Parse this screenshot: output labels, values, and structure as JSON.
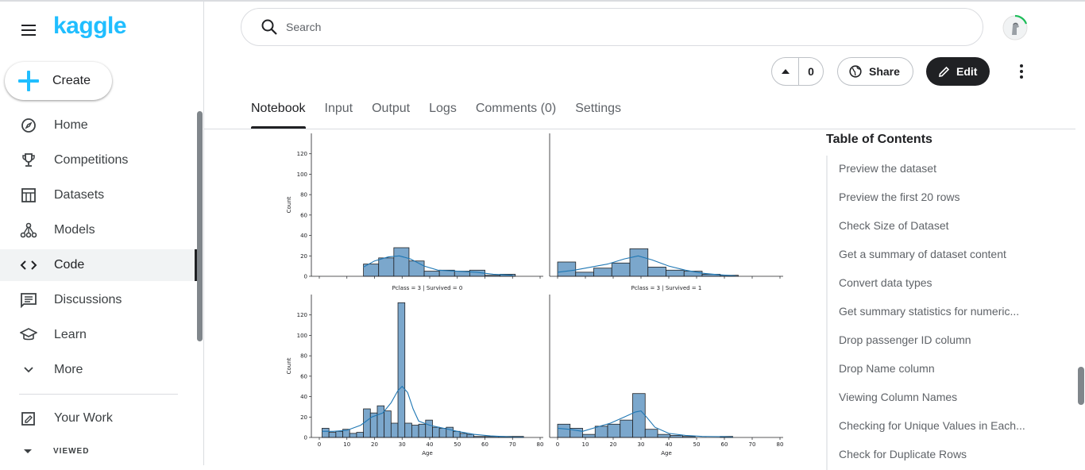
{
  "brand": {
    "logo_text": "kaggle",
    "accent": "#20beff"
  },
  "sidebar": {
    "create_label": "Create",
    "items": [
      {
        "label": "Home",
        "icon": "compass-icon"
      },
      {
        "label": "Competitions",
        "icon": "trophy-icon"
      },
      {
        "label": "Datasets",
        "icon": "table-icon"
      },
      {
        "label": "Models",
        "icon": "models-icon"
      },
      {
        "label": "Code",
        "icon": "code-icon",
        "active": true
      },
      {
        "label": "Discussions",
        "icon": "discussion-icon"
      },
      {
        "label": "Learn",
        "icon": "school-icon"
      },
      {
        "label": "More",
        "icon": "chevron-down-icon"
      }
    ],
    "your_work_label": "Your Work",
    "viewed_label": "VIEWED"
  },
  "header": {
    "search_placeholder": "Search",
    "vote_count": "0",
    "share_label": "Share",
    "edit_label": "Edit"
  },
  "tabs": [
    {
      "label": "Notebook",
      "active": true
    },
    {
      "label": "Input"
    },
    {
      "label": "Output"
    },
    {
      "label": "Logs"
    },
    {
      "label": "Comments (0)"
    },
    {
      "label": "Settings"
    }
  ],
  "toc": {
    "title": "Table of Contents",
    "items": [
      "Preview the dataset",
      "Preview the first 20 rows",
      "Check Size of Dataset",
      "Get a summary of dataset content",
      "Convert data types",
      "Get summary statistics for numeric...",
      "Drop passenger ID column",
      "Drop Name column",
      "Viewing Column Names",
      "Checking for Unique Values in Each...",
      "Check for Duplicate Rows"
    ]
  },
  "chart_data": {
    "type": "bar",
    "bar_color": "#7ba7cc",
    "kde_color": "#1f77b4",
    "ylabel": "Count",
    "xlabel": "Age",
    "xlim": [
      0,
      80
    ],
    "ylim": [
      0,
      140
    ],
    "xticks": [
      0,
      10,
      20,
      30,
      40,
      50,
      60,
      70,
      80
    ],
    "yticks": [
      0,
      20,
      40,
      60,
      80,
      100,
      120
    ],
    "panels": [
      {
        "title": "",
        "bins": [
          {
            "x0": 16,
            "x1": 21.5,
            "count": 12
          },
          {
            "x0": 21.5,
            "x1": 27,
            "count": 18
          },
          {
            "x0": 27,
            "x1": 32.5,
            "count": 28
          },
          {
            "x0": 32.5,
            "x1": 38,
            "count": 15
          },
          {
            "x0": 38,
            "x1": 43.5,
            "count": 5
          },
          {
            "x0": 43.5,
            "x1": 49,
            "count": 6
          },
          {
            "x0": 49,
            "x1": 54.5,
            "count": 5
          },
          {
            "x0": 54.5,
            "x1": 60,
            "count": 6
          },
          {
            "x0": 60,
            "x1": 65.5,
            "count": 1
          },
          {
            "x0": 65.5,
            "x1": 71,
            "count": 2
          }
        ],
        "kde": [
          [
            16,
            9
          ],
          [
            20,
            15
          ],
          [
            25,
            19
          ],
          [
            29,
            20
          ],
          [
            33,
            17
          ],
          [
            38,
            10
          ],
          [
            43,
            6
          ],
          [
            50,
            5
          ],
          [
            57,
            4
          ],
          [
            63,
            2
          ],
          [
            70,
            1
          ]
        ]
      },
      {
        "title": "",
        "bins": [
          {
            "x0": 0,
            "x1": 6.5,
            "count": 14
          },
          {
            "x0": 6.5,
            "x1": 13,
            "count": 4
          },
          {
            "x0": 13,
            "x1": 19.5,
            "count": 8
          },
          {
            "x0": 19.5,
            "x1": 26,
            "count": 13
          },
          {
            "x0": 26,
            "x1": 32.5,
            "count": 27
          },
          {
            "x0": 32.5,
            "x1": 39,
            "count": 9
          },
          {
            "x0": 39,
            "x1": 45.5,
            "count": 6
          },
          {
            "x0": 45.5,
            "x1": 52,
            "count": 5
          },
          {
            "x0": 52,
            "x1": 58.5,
            "count": 2
          },
          {
            "x0": 58.5,
            "x1": 65,
            "count": 1
          }
        ],
        "kde": [
          [
            0,
            4
          ],
          [
            6,
            6
          ],
          [
            12,
            9
          ],
          [
            18,
            12
          ],
          [
            24,
            17
          ],
          [
            29,
            20
          ],
          [
            34,
            16
          ],
          [
            40,
            10
          ],
          [
            46,
            6
          ],
          [
            52,
            3
          ],
          [
            58,
            1.5
          ],
          [
            64,
            0.5
          ]
        ]
      },
      {
        "title": "Pclass = 3 | Survived = 0",
        "bins": [
          {
            "x0": 1,
            "x1": 3.5,
            "count": 9
          },
          {
            "x0": 3.5,
            "x1": 6,
            "count": 5
          },
          {
            "x0": 6,
            "x1": 8.5,
            "count": 6
          },
          {
            "x0": 8.5,
            "x1": 11,
            "count": 8
          },
          {
            "x0": 11,
            "x1": 13.5,
            "count": 4
          },
          {
            "x0": 13.5,
            "x1": 16,
            "count": 5
          },
          {
            "x0": 16,
            "x1": 18.5,
            "count": 28
          },
          {
            "x0": 18.5,
            "x1": 21,
            "count": 24
          },
          {
            "x0": 21,
            "x1": 23.5,
            "count": 31
          },
          {
            "x0": 23.5,
            "x1": 26,
            "count": 26
          },
          {
            "x0": 26,
            "x1": 28.5,
            "count": 14
          },
          {
            "x0": 28.5,
            "x1": 31,
            "count": 132
          },
          {
            "x0": 31,
            "x1": 33.5,
            "count": 14
          },
          {
            "x0": 33.5,
            "x1": 36,
            "count": 12
          },
          {
            "x0": 36,
            "x1": 38.5,
            "count": 13
          },
          {
            "x0": 38.5,
            "x1": 41,
            "count": 17
          },
          {
            "x0": 41,
            "x1": 43.5,
            "count": 10
          },
          {
            "x0": 43.5,
            "x1": 46,
            "count": 9
          },
          {
            "x0": 46,
            "x1": 48.5,
            "count": 10
          },
          {
            "x0": 48.5,
            "x1": 51,
            "count": 6
          },
          {
            "x0": 51,
            "x1": 53.5,
            "count": 4
          },
          {
            "x0": 53.5,
            "x1": 56,
            "count": 3
          },
          {
            "x0": 56,
            "x1": 60,
            "count": 1
          },
          {
            "x0": 60,
            "x1": 65,
            "count": 1
          },
          {
            "x0": 65,
            "x1": 70,
            "count": 1
          },
          {
            "x0": 70,
            "x1": 74,
            "count": 1
          }
        ],
        "kde": [
          [
            1,
            6
          ],
          [
            5,
            6
          ],
          [
            10,
            7
          ],
          [
            15,
            12
          ],
          [
            19,
            20
          ],
          [
            23,
            24
          ],
          [
            26,
            34
          ],
          [
            28.5,
            46
          ],
          [
            30,
            50
          ],
          [
            32,
            44
          ],
          [
            34,
            28
          ],
          [
            36,
            16
          ],
          [
            40,
            12
          ],
          [
            45,
            9
          ],
          [
            50,
            6
          ],
          [
            56,
            3
          ],
          [
            62,
            1.5
          ],
          [
            70,
            0.5
          ],
          [
            74,
            0.3
          ]
        ]
      },
      {
        "title": "Pclass = 3 | Survived = 1",
        "bins": [
          {
            "x0": 0,
            "x1": 4.5,
            "count": 13
          },
          {
            "x0": 4.5,
            "x1": 9,
            "count": 9
          },
          {
            "x0": 9,
            "x1": 13.5,
            "count": 3
          },
          {
            "x0": 13.5,
            "x1": 18,
            "count": 11
          },
          {
            "x0": 18,
            "x1": 22.5,
            "count": 13
          },
          {
            "x0": 22.5,
            "x1": 27,
            "count": 17
          },
          {
            "x0": 27,
            "x1": 31.5,
            "count": 43
          },
          {
            "x0": 31.5,
            "x1": 36,
            "count": 8
          },
          {
            "x0": 36,
            "x1": 40.5,
            "count": 3
          },
          {
            "x0": 40.5,
            "x1": 45,
            "count": 2
          },
          {
            "x0": 45,
            "x1": 49.5,
            "count": 1
          },
          {
            "x0": 58.5,
            "x1": 63,
            "count": 1
          }
        ],
        "kde": [
          [
            0,
            9
          ],
          [
            4,
            8
          ],
          [
            9,
            6
          ],
          [
            14,
            10
          ],
          [
            19,
            14
          ],
          [
            24,
            20
          ],
          [
            28,
            25
          ],
          [
            30,
            26
          ],
          [
            32,
            20
          ],
          [
            35,
            10
          ],
          [
            40,
            4
          ],
          [
            46,
            2
          ],
          [
            52,
            1
          ],
          [
            60,
            0.8
          ],
          [
            63,
            0.4
          ]
        ]
      }
    ]
  }
}
